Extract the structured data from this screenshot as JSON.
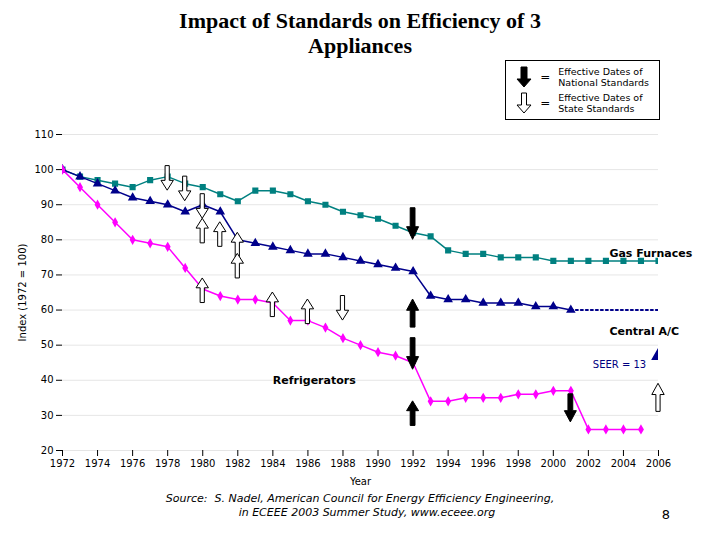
{
  "chart_data": {
    "type": "line",
    "title": "Impact of Standards on Efficiency of 3\nAppliances",
    "xlabel": "Year",
    "ylabel": "Index (1972 = 100)",
    "xlim": [
      1972,
      2006
    ],
    "ylim": [
      20,
      110
    ],
    "xticks": [
      1972,
      1974,
      1976,
      1978,
      1980,
      1982,
      1984,
      1986,
      1988,
      1990,
      1992,
      1994,
      1996,
      1998,
      2000,
      2002,
      2004,
      2006
    ],
    "yticks": [
      20,
      30,
      40,
      50,
      60,
      70,
      80,
      90,
      100,
      110
    ],
    "grid": "y",
    "series": [
      {
        "name": "Gas Furnaces",
        "color": "#008080",
        "marker": "square",
        "line_style": "solid",
        "x": [
          1972,
          1973,
          1974,
          1975,
          1976,
          1977,
          1978,
          1979,
          1980,
          1981,
          1982,
          1983,
          1984,
          1985,
          1986,
          1987,
          1988,
          1989,
          1990,
          1991,
          1992,
          1993,
          1994,
          1995,
          1996,
          1997,
          1998,
          1999,
          2000,
          2001,
          2002,
          2003,
          2004,
          2005,
          2006
        ],
        "values": [
          100,
          98,
          97,
          96,
          95,
          97,
          98,
          96,
          95,
          93,
          91,
          94,
          94,
          93,
          91,
          90,
          88,
          87,
          86,
          84,
          82,
          81,
          77,
          76,
          76,
          75,
          75,
          75,
          74,
          74,
          74,
          74,
          74,
          74,
          74
        ]
      },
      {
        "name": "Central A/C",
        "color": "#00008B",
        "marker": "triangle",
        "line_style": "solid",
        "x": [
          1972,
          1973,
          1974,
          1975,
          1976,
          1977,
          1978,
          1979,
          1980,
          1981,
          1982,
          1983,
          1984,
          1985,
          1986,
          1987,
          1988,
          1989,
          1990,
          1991,
          1992,
          1993,
          1994,
          1995,
          1996,
          1997,
          1998,
          1999,
          2000,
          2001
        ],
        "values": [
          100,
          98,
          96,
          94,
          92,
          91,
          90,
          88,
          90,
          88,
          80,
          79,
          78,
          77,
          76,
          76,
          75,
          74,
          73,
          72,
          71,
          64,
          63,
          63,
          62,
          62,
          62,
          61,
          61,
          60
        ]
      },
      {
        "name": "Central A/C",
        "color": "#00008B",
        "marker": "none",
        "line_style": "dotted",
        "x": [
          2001,
          2002,
          2003,
          2004,
          2005,
          2006
        ],
        "values": [
          60,
          60,
          60,
          60,
          60,
          60
        ]
      },
      {
        "name": "Refrigerators",
        "color": "#FF00FF",
        "marker": "diamond",
        "line_style": "solid",
        "x": [
          1972,
          1973,
          1974,
          1975,
          1976,
          1977,
          1978,
          1979,
          1980,
          1981,
          1982,
          1983,
          1984,
          1985,
          1986,
          1987,
          1988,
          1989,
          1990,
          1991,
          1992,
          1993,
          1994,
          1995,
          1996,
          1997,
          1998,
          1999,
          2000,
          2001,
          2002,
          2003,
          2004,
          2005
        ],
        "values": [
          100,
          95,
          90,
          85,
          80,
          79,
          78,
          72,
          66,
          64,
          63,
          63,
          62,
          57,
          57,
          55,
          52,
          50,
          48,
          47,
          45,
          34,
          34,
          35,
          35,
          35,
          36,
          36,
          37,
          37,
          26,
          26,
          26,
          26
        ]
      }
    ],
    "points": [
      {
        "x": 2006,
        "y": 47,
        "color": "#00008B",
        "marker": "triangle",
        "label": "SEER = 13",
        "label_x": 2005.3,
        "label_y": 45.5,
        "label_color": "#000080"
      }
    ],
    "annotations": [
      {
        "text": "Gas Furnaces",
        "x": 2003.2,
        "y": 76
      },
      {
        "text": "Central A/C",
        "x": 2003.2,
        "y": 54
      },
      {
        "text": "Refrigerators",
        "x": 1984,
        "y": 40
      }
    ],
    "arrows": [
      {
        "x": 1992,
        "from": 89,
        "to": 80,
        "kind": "national"
      },
      {
        "x": 1992,
        "from": 52,
        "to": 43,
        "kind": "national"
      },
      {
        "x": 1992,
        "from": 27,
        "to": 34,
        "kind": "national"
      },
      {
        "x": 1992,
        "from": 55,
        "to": 63,
        "kind": "national"
      },
      {
        "x": 2001,
        "from": 36,
        "to": 28,
        "kind": "national"
      },
      {
        "x": 1978,
        "from": 101,
        "to": 94,
        "kind": "state"
      },
      {
        "x": 1979,
        "from": 98,
        "to": 91,
        "kind": "state"
      },
      {
        "x": 1980,
        "from": 93,
        "to": 86,
        "kind": "state"
      },
      {
        "x": 1980,
        "from": 79,
        "to": 86,
        "kind": "state"
      },
      {
        "x": 1981,
        "from": 78,
        "to": 85,
        "kind": "state"
      },
      {
        "x": 1982,
        "from": 75,
        "to": 82,
        "kind": "state"
      },
      {
        "x": 1982,
        "from": 69,
        "to": 76,
        "kind": "state"
      },
      {
        "x": 1980,
        "from": 62,
        "to": 69,
        "kind": "state"
      },
      {
        "x": 1984,
        "from": 58,
        "to": 65,
        "kind": "state"
      },
      {
        "x": 1986,
        "from": 56,
        "to": 63,
        "kind": "state"
      },
      {
        "x": 1988,
        "from": 64,
        "to": 57,
        "kind": "state"
      },
      {
        "x": 2006,
        "from": 31,
        "to": 39,
        "kind": "state"
      }
    ],
    "key": [
      {
        "kind": "national",
        "sign": "=",
        "text": [
          "Effective Dates of",
          "National Standards"
        ]
      },
      {
        "kind": "state",
        "sign": "=",
        "text": [
          "Effective Dates of",
          "State Standards"
        ]
      }
    ],
    "source": [
      "Source:  S. Nadel, American Council for Energy Efficiency Engineering,",
      "    in ECEEE 2003 Summer Study, www.eceee.org"
    ],
    "page_number": "8"
  }
}
